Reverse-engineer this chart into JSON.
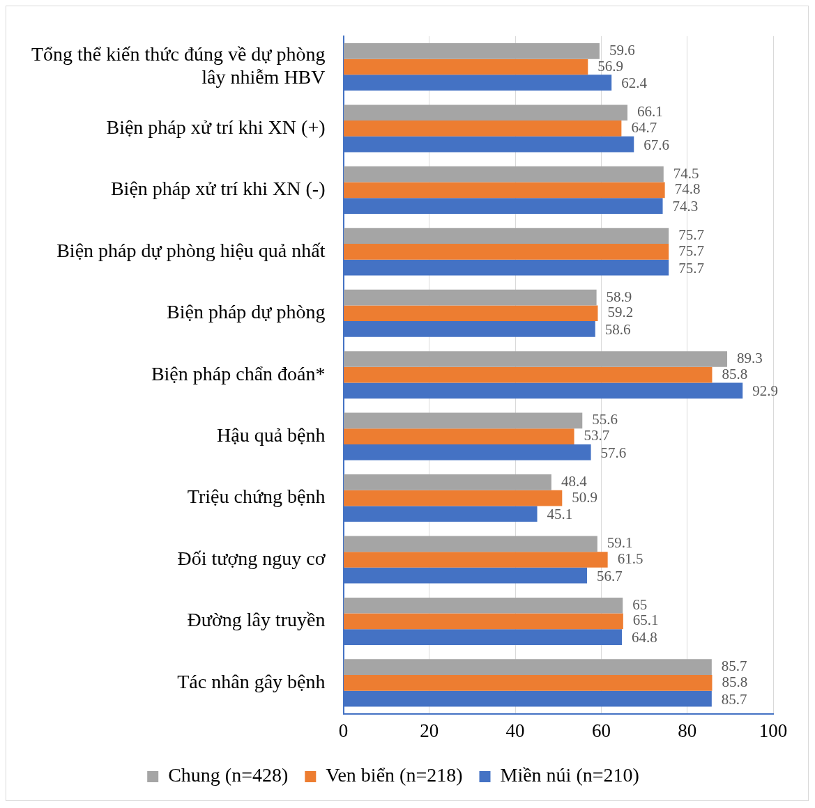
{
  "chart_data": {
    "type": "bar",
    "orientation": "horizontal",
    "categories": [
      "Tổng thể kiến thức đúng về dự phòng lây nhiễm HBV",
      "Biện pháp xử trí khi XN (+)",
      "Biện pháp xử trí khi XN (-)",
      "Biện pháp dự phòng hiệu quả nhất",
      "Biện pháp dự phòng",
      "Biện pháp chẩn đoán*",
      "Hậu quả bệnh",
      "Triệu chứng bệnh",
      "Đối tượng nguy cơ",
      "Đường lây truyền",
      "Tác nhân gây bệnh"
    ],
    "series": [
      {
        "name": "Chung (n=428)",
        "color": "#a5a5a5",
        "values": [
          59.6,
          66.1,
          74.5,
          75.7,
          58.9,
          89.3,
          55.6,
          48.4,
          59.1,
          65,
          85.7
        ]
      },
      {
        "name": "Ven biển (n=218)",
        "color": "#ed7d31",
        "values": [
          56.9,
          64.7,
          74.8,
          75.7,
          59.2,
          85.8,
          53.7,
          50.9,
          61.5,
          65.1,
          85.8
        ]
      },
      {
        "name": "Miền núi (n=210)",
        "color": "#4472c4",
        "values": [
          62.4,
          67.6,
          74.3,
          75.7,
          58.6,
          92.9,
          57.6,
          45.1,
          56.7,
          64.8,
          85.7
        ]
      }
    ],
    "xlim": [
      0,
      100
    ],
    "xticks": [
      0,
      20,
      40,
      60,
      80,
      100
    ],
    "grid": "x",
    "legend": "bottom",
    "data_labels": true
  }
}
